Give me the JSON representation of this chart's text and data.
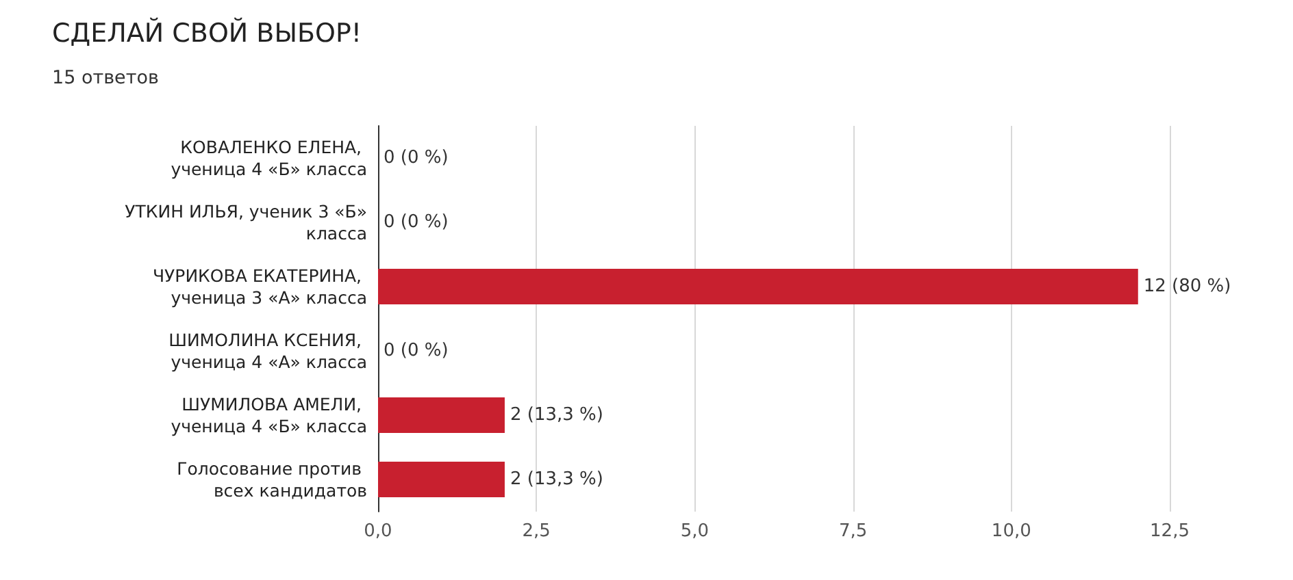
{
  "chart_data": {
    "type": "bar",
    "orientation": "horizontal",
    "title": "СДЕЛАЙ СВОЙ ВЫБОР!",
    "subtitle": "15 ответов",
    "categories": [
      "КОВАЛЕНКО ЕЛЕНА, ученица 4 «Б» класса",
      "УТКИН ИЛЬЯ, ученик 3 «Б» класса",
      "ЧУРИКОВА ЕКАТЕРИНА, ученица 3 «А» класса",
      "ШИМОЛИНА КСЕНИЯ, ученица 4 «А» класса",
      "ШУМИЛОВА АМЕЛИ, ученица 4 «Б» класса",
      "Голосование против всех кандидатов"
    ],
    "values": [
      0,
      0,
      12,
      0,
      2,
      2
    ],
    "value_labels": [
      "0 (0 %)",
      "0 (0 %)",
      "12 (80 %)",
      "0 (0 %)",
      "2 (13,3 %)",
      "2 (13,3 %)"
    ],
    "color": "#c8202f",
    "xlim": [
      0,
      12.5
    ],
    "xticks": [
      {
        "value": 0,
        "label": "0,0"
      },
      {
        "value": 2.5,
        "label": "2,5"
      },
      {
        "value": 5,
        "label": "5,0"
      },
      {
        "value": 7.5,
        "label": "7,5"
      },
      {
        "value": 10,
        "label": "10,0"
      },
      {
        "value": 12.5,
        "label": "12,5"
      }
    ],
    "grid": "x"
  }
}
